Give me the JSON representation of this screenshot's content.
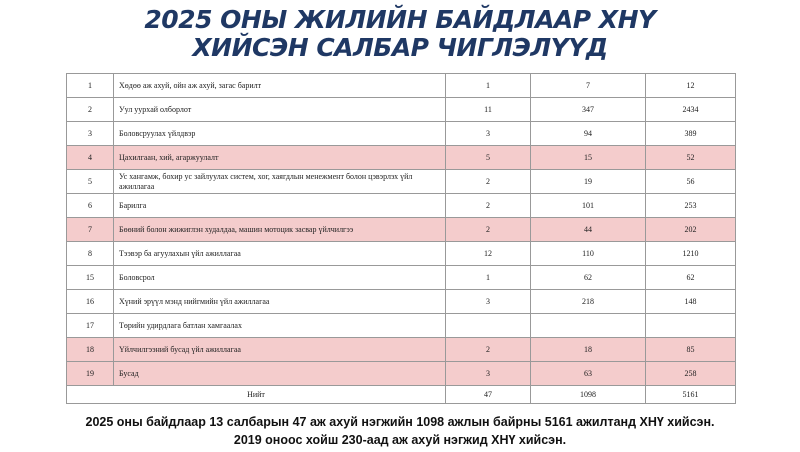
{
  "header": {
    "title_lines": [
      "2025 ОНЫ ЖИЛИЙН БАЙДЛААР ХНҮ",
      "ХИЙСЭН САЛБАР ЧИГЛЭЛҮҮД"
    ]
  },
  "table": {
    "rows": [
      {
        "cells": [
          "1",
          "Хөдөө аж ахуй, ойн аж ахуй, загас барилт",
          "1",
          "7",
          "12"
        ],
        "highlight": false
      },
      {
        "cells": [
          "2",
          "Уул уурхай олборлот",
          "11",
          "347",
          "2434"
        ],
        "highlight": false
      },
      {
        "cells": [
          "3",
          "Боловсруулах үйлдвэр",
          "3",
          "94",
          "389"
        ],
        "highlight": false
      },
      {
        "cells": [
          "4",
          "Цахилгаан, хий, агаржуулалт",
          "5",
          "15",
          "52"
        ],
        "highlight": true
      },
      {
        "cells": [
          "5",
          "Ус хангамж, бохир ус зайлуулах систем, хог, хаягдлын менежмент болон цэвэрлэх үйл ажиллагаа",
          "2",
          "19",
          "56"
        ],
        "highlight": false
      },
      {
        "cells": [
          "6",
          "Барилга",
          "2",
          "101",
          "253"
        ],
        "highlight": false
      },
      {
        "cells": [
          "7",
          "Бөөний болон жижиглэн худалдаа, машин мотоцик засвар үйлчилгээ",
          "2",
          "44",
          "202"
        ],
        "highlight": true
      },
      {
        "cells": [
          "8",
          "Тээвэр ба агуулахын үйл ажиллагаа",
          "12",
          "110",
          "1210"
        ],
        "highlight": false
      },
      {
        "cells": [
          "15",
          "Боловсрол",
          "1",
          "62",
          "62"
        ],
        "highlight": false
      },
      {
        "cells": [
          "16",
          "Хүний эрүүл мэнд нийгмийн үйл ажиллагаа",
          "3",
          "218",
          "148"
        ],
        "highlight": false
      },
      {
        "cells": [
          "17",
          "Төрийн удирдлага батлан хамгаалах"
        ],
        "highlight": false
      },
      {
        "cells": [
          "18",
          "Үйлчилгээний бусад үйл ажиллагаа",
          "2",
          "18",
          "85"
        ],
        "highlight": true
      },
      {
        "cells": [
          "19",
          "Бусад",
          "3",
          "63",
          "258"
        ],
        "highlight": true
      }
    ],
    "total": {
      "label": "Нийт",
      "cells": [
        "47",
        "1098",
        "5161"
      ]
    }
  },
  "footer": {
    "lines": [
      "2025 оны байдлаар 13 салбарын 47 аж ахуй нэгжийн 1098 ажлын байрны  5161 ажилтанд ХНҮ хийсэн.",
      "2019 оноос хойш 230-аад аж ахуй нэгжид ХНҮ хийсэн."
    ]
  }
}
